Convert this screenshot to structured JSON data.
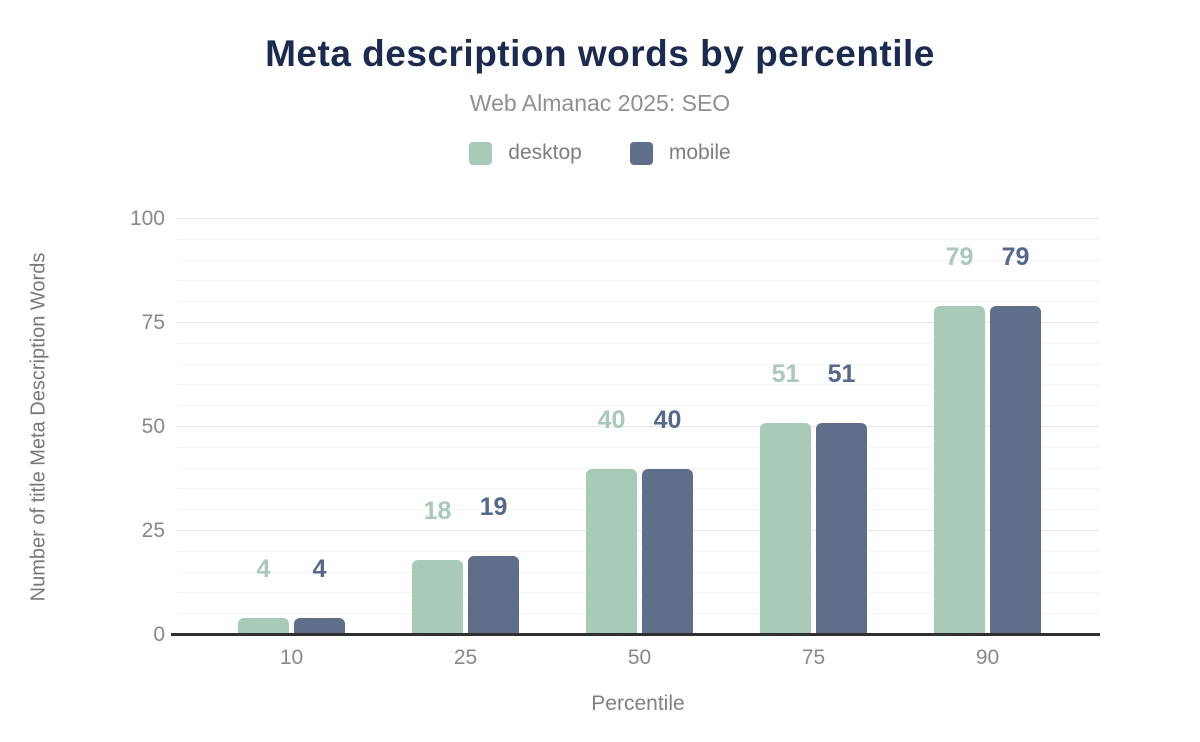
{
  "header": {
    "title": "Meta description words by percentile",
    "subtitle": "Web Almanac 2025: SEO"
  },
  "legend": {
    "items": [
      {
        "label": "desktop",
        "color": "#a9c9b9"
      },
      {
        "label": "mobile",
        "color": "#5f6e8a"
      }
    ]
  },
  "chart_data": {
    "type": "bar",
    "title": "Meta description words by percentile",
    "subtitle": "Web Almanac 2025: SEO",
    "categories": [
      "10",
      "25",
      "50",
      "75",
      "90"
    ],
    "series": [
      {
        "name": "desktop",
        "color": "#a9c9b9",
        "label_color": "#a9c9b9",
        "values": [
          4,
          18,
          40,
          51,
          79
        ]
      },
      {
        "name": "mobile",
        "color": "#5f6e8a",
        "label_color": "#56688b",
        "values": [
          4,
          19,
          40,
          51,
          79
        ]
      }
    ],
    "xlabel": "Percentile",
    "ylabel": "Number of title Meta Description Words",
    "ylim": [
      0,
      100
    ],
    "y_ticks": [
      0,
      25,
      50,
      75,
      100
    ],
    "minor_tick_step": 5,
    "grid": true,
    "value_labels": true,
    "legend_position": "top"
  },
  "colors": {
    "title": "#1a2b4e",
    "subtitle": "#8b9196",
    "axis_line": "#303030",
    "tick_label": "#86898c",
    "gridline_major": "#e7e7e7",
    "gridline_minor": "#f5f5f5",
    "background": "#ffffff"
  }
}
